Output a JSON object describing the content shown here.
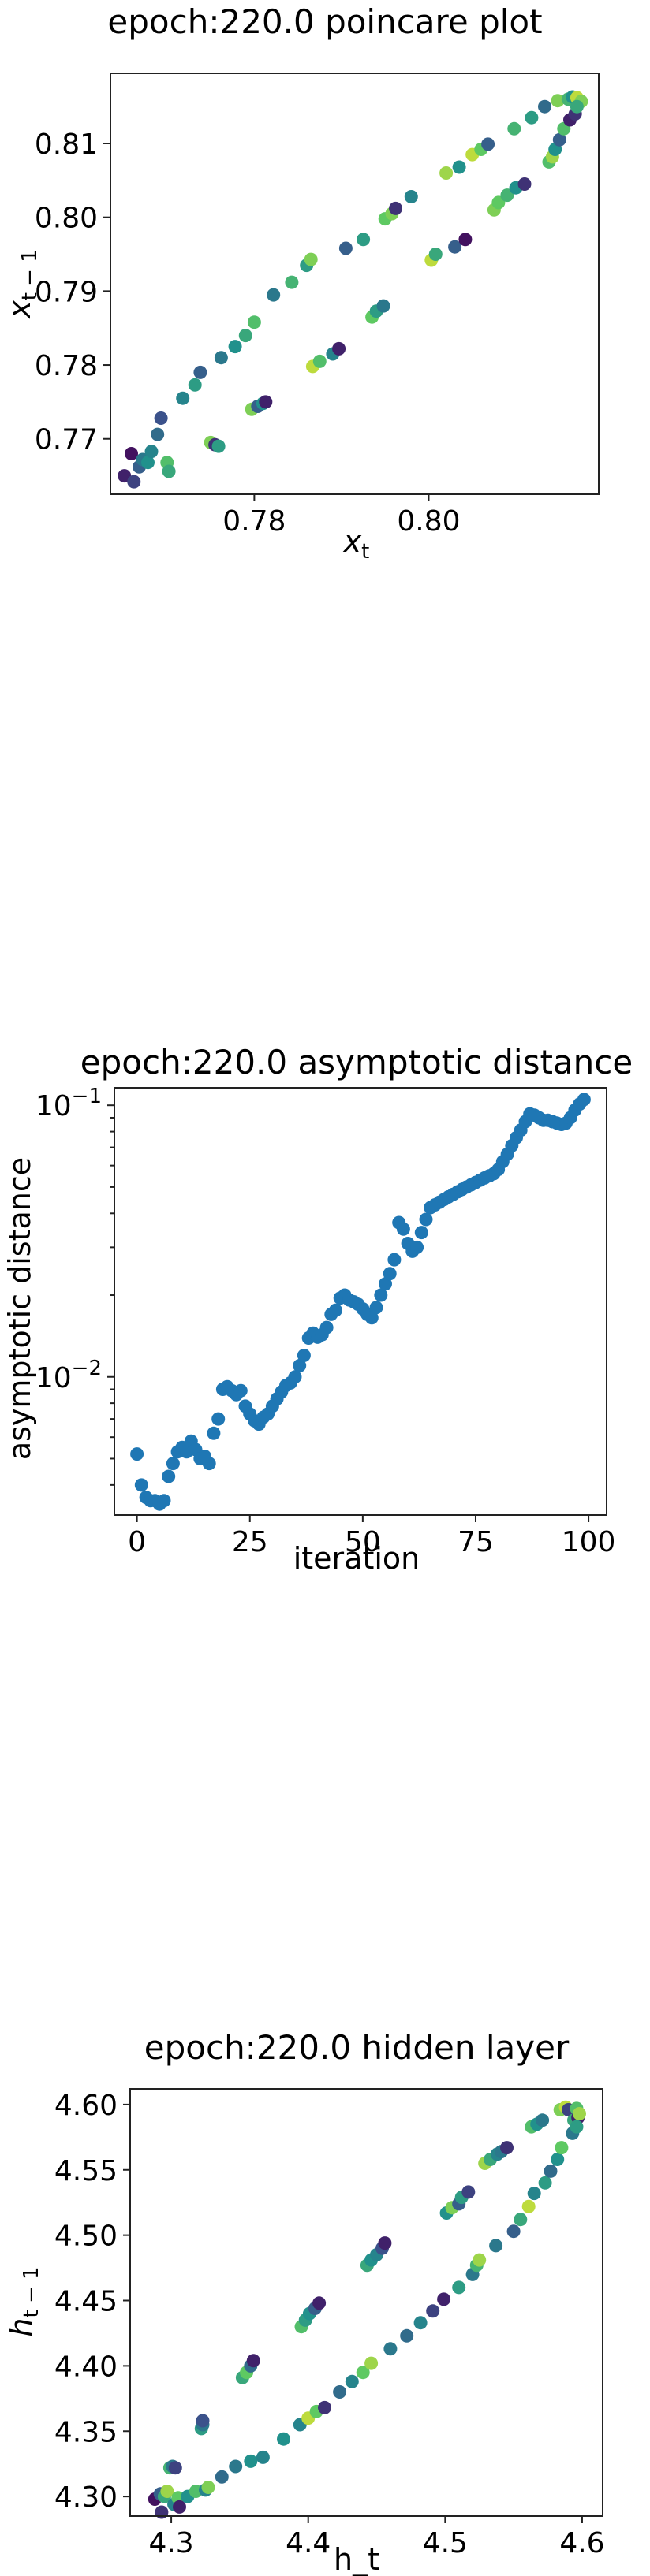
{
  "chart_data": [
    {
      "type": "scatter",
      "title": "epoch:220.0 poincare plot",
      "xlabel": "x_t",
      "ylabel": "x_{t-1}",
      "xlim": [
        0.7635,
        0.8195
      ],
      "ylim": [
        0.7625,
        0.8195
      ],
      "xticks": [
        0.78,
        0.8
      ],
      "xtick_labels": [
        "0.78",
        "0.80"
      ],
      "yticks": [
        0.77,
        0.78,
        0.79,
        0.8,
        0.81
      ],
      "ytick_labels": [
        "0.77",
        "0.78",
        "0.79",
        "0.80",
        "0.81"
      ],
      "colormap": [
        "#440154",
        "#3b528b",
        "#21918c",
        "#5ec962",
        "#fde725"
      ],
      "grid": false,
      "points": [
        [
          0.7651,
          0.765,
          0.1
        ],
        [
          0.7659,
          0.768,
          0.05
        ],
        [
          0.7662,
          0.7642,
          0.2
        ],
        [
          0.7668,
          0.7662,
          0.3
        ],
        [
          0.7672,
          0.7672,
          0.4
        ],
        [
          0.7678,
          0.7668,
          0.5
        ],
        [
          0.7682,
          0.7683,
          0.45
        ],
        [
          0.7689,
          0.7706,
          0.35
        ],
        [
          0.7693,
          0.7728,
          0.25
        ],
        [
          0.77,
          0.7668,
          0.7
        ],
        [
          0.7702,
          0.7656,
          0.6
        ],
        [
          0.7718,
          0.7755,
          0.45
        ],
        [
          0.7732,
          0.7773,
          0.55
        ],
        [
          0.7738,
          0.779,
          0.3
        ],
        [
          0.775,
          0.7695,
          0.8
        ],
        [
          0.7755,
          0.7692,
          0.15
        ],
        [
          0.7759,
          0.769,
          0.55
        ],
        [
          0.7762,
          0.781,
          0.4
        ],
        [
          0.7778,
          0.7825,
          0.5
        ],
        [
          0.779,
          0.784,
          0.6
        ],
        [
          0.7797,
          0.774,
          0.8
        ],
        [
          0.78,
          0.7858,
          0.7
        ],
        [
          0.7804,
          0.7744,
          0.3
        ],
        [
          0.781,
          0.7748,
          0.5
        ],
        [
          0.7813,
          0.775,
          0.1
        ],
        [
          0.7822,
          0.7895,
          0.4
        ],
        [
          0.7843,
          0.7912,
          0.65
        ],
        [
          0.786,
          0.7935,
          0.55
        ],
        [
          0.7865,
          0.7943,
          0.8
        ],
        [
          0.7867,
          0.7798,
          0.9
        ],
        [
          0.7875,
          0.7805,
          0.7
        ],
        [
          0.789,
          0.7815,
          0.45
        ],
        [
          0.7897,
          0.7822,
          0.1
        ],
        [
          0.7905,
          0.7958,
          0.3
        ],
        [
          0.7925,
          0.797,
          0.55
        ],
        [
          0.7935,
          0.7865,
          0.75
        ],
        [
          0.794,
          0.7873,
          0.55
        ],
        [
          0.7948,
          0.788,
          0.4
        ],
        [
          0.795,
          0.7998,
          0.75
        ],
        [
          0.7958,
          0.8005,
          0.8
        ],
        [
          0.7962,
          0.8012,
          0.15
        ],
        [
          0.798,
          0.8028,
          0.45
        ],
        [
          0.8003,
          0.7942,
          0.9
        ],
        [
          0.8008,
          0.795,
          0.6
        ],
        [
          0.802,
          0.806,
          0.85
        ],
        [
          0.803,
          0.796,
          0.3
        ],
        [
          0.8035,
          0.8068,
          0.5
        ],
        [
          0.8042,
          0.797,
          0.05
        ],
        [
          0.805,
          0.8085,
          0.9
        ],
        [
          0.806,
          0.8092,
          0.75
        ],
        [
          0.8068,
          0.8099,
          0.3
        ],
        [
          0.8075,
          0.801,
          0.8
        ],
        [
          0.808,
          0.802,
          0.75
        ],
        [
          0.809,
          0.803,
          0.65
        ],
        [
          0.8098,
          0.812,
          0.65
        ],
        [
          0.81,
          0.804,
          0.5
        ],
        [
          0.811,
          0.8045,
          0.15
        ],
        [
          0.8118,
          0.8135,
          0.55
        ],
        [
          0.8133,
          0.815,
          0.35
        ],
        [
          0.8138,
          0.8075,
          0.7
        ],
        [
          0.8142,
          0.8082,
          0.85
        ],
        [
          0.8145,
          0.8092,
          0.5
        ],
        [
          0.8148,
          0.8158,
          0.8
        ],
        [
          0.815,
          0.8105,
          0.3
        ],
        [
          0.8155,
          0.812,
          0.7
        ],
        [
          0.816,
          0.816,
          0.65
        ],
        [
          0.8162,
          0.8132,
          0.1
        ],
        [
          0.8165,
          0.8163,
          0.5
        ],
        [
          0.8168,
          0.814,
          0.15
        ],
        [
          0.817,
          0.8162,
          0.9
        ],
        [
          0.8175,
          0.8157,
          0.8
        ],
        [
          0.817,
          0.815,
          0.6
        ]
      ]
    },
    {
      "type": "scatter",
      "title": "epoch:220.0 asymptotic distance",
      "xlabel": "iteration",
      "ylabel": "asymptotic distance",
      "yscale": "log",
      "xlim": [
        -5,
        104
      ],
      "ylim": [
        0.0031,
        0.116
      ],
      "xticks": [
        0,
        25,
        50,
        75,
        100
      ],
      "xtick_labels": [
        "0",
        "25",
        "50",
        "75",
        "100"
      ],
      "ytick_labels": [
        "10^-2",
        "10^-1"
      ],
      "color": "#1f77b4",
      "grid": false,
      "x": [
        0,
        1,
        2,
        3,
        4,
        5,
        6,
        7,
        8,
        9,
        10,
        11,
        12,
        13,
        14,
        15,
        16,
        17,
        18,
        19,
        20,
        21,
        22,
        23,
        24,
        25,
        26,
        27,
        28,
        29,
        30,
        31,
        32,
        33,
        34,
        35,
        36,
        37,
        38,
        39,
        40,
        41,
        42,
        43,
        44,
        45,
        46,
        47,
        48,
        49,
        50,
        51,
        52,
        53,
        54,
        55,
        56,
        57,
        58,
        59,
        60,
        61,
        62,
        63,
        64,
        65,
        66,
        67,
        68,
        69,
        70,
        71,
        72,
        73,
        74,
        75,
        76,
        77,
        78,
        79,
        80,
        81,
        82,
        83,
        84,
        85,
        86,
        87,
        88,
        89,
        90,
        91,
        92,
        93,
        94,
        95,
        96,
        97,
        98,
        99
      ],
      "y": [
        0.0052,
        0.004,
        0.0036,
        0.0035,
        0.0035,
        0.0034,
        0.0035,
        0.0043,
        0.0048,
        0.0053,
        0.0055,
        0.0053,
        0.0058,
        0.0054,
        0.005,
        0.0051,
        0.0048,
        0.0062,
        0.007,
        0.009,
        0.0092,
        0.0089,
        0.0086,
        0.0089,
        0.0078,
        0.0073,
        0.0069,
        0.0067,
        0.0071,
        0.0073,
        0.0078,
        0.0083,
        0.0088,
        0.0093,
        0.0095,
        0.01,
        0.011,
        0.012,
        0.0139,
        0.0145,
        0.014,
        0.0143,
        0.0152,
        0.017,
        0.0176,
        0.0195,
        0.02,
        0.0192,
        0.0189,
        0.0185,
        0.0178,
        0.017,
        0.0165,
        0.018,
        0.02,
        0.022,
        0.024,
        0.027,
        0.037,
        0.035,
        0.031,
        0.029,
        0.03,
        0.034,
        0.038,
        0.042,
        0.043,
        0.044,
        0.045,
        0.046,
        0.047,
        0.048,
        0.049,
        0.05,
        0.051,
        0.052,
        0.053,
        0.054,
        0.055,
        0.056,
        0.058,
        0.062,
        0.066,
        0.071,
        0.076,
        0.081,
        0.087,
        0.093,
        0.092,
        0.09,
        0.088,
        0.088,
        0.087,
        0.086,
        0.085,
        0.086,
        0.09,
        0.096,
        0.101,
        0.105
      ]
    },
    {
      "type": "scatter",
      "title": "epoch:220.0 hidden layer",
      "xlabel": "h_t",
      "ylabel": "h_{t-1}",
      "xlim": [
        4.27,
        4.615
      ],
      "ylim": [
        4.285,
        4.612
      ],
      "xticks": [
        4.3,
        4.4,
        4.5,
        4.6
      ],
      "xtick_labels": [
        "4.3",
        "4.4",
        "4.5",
        "4.6"
      ],
      "yticks": [
        4.3,
        4.35,
        4.4,
        4.45,
        4.5,
        4.55,
        4.6
      ],
      "ytick_labels": [
        "4.30",
        "4.35",
        "4.40",
        "4.45",
        "4.50",
        "4.55",
        "4.60"
      ],
      "colormap": [
        "#440154",
        "#3b528b",
        "#21918c",
        "#5ec962",
        "#fde725"
      ],
      "grid": false,
      "points": [
        [
          4.288,
          4.298,
          0.05
        ],
        [
          4.292,
          4.302,
          0.3
        ],
        [
          4.293,
          4.288,
          0.15
        ],
        [
          4.295,
          4.3,
          0.6
        ],
        [
          4.297,
          4.304,
          0.85
        ],
        [
          4.299,
          4.322,
          0.65
        ],
        [
          4.301,
          4.323,
          0.4
        ],
        [
          4.303,
          4.322,
          0.2
        ],
        [
          4.302,
          4.294,
          0.45
        ],
        [
          4.305,
          4.299,
          0.75
        ],
        [
          4.306,
          4.292,
          0.1
        ],
        [
          4.312,
          4.3,
          0.5
        ],
        [
          4.318,
          4.304,
          0.7
        ],
        [
          4.322,
          4.352,
          0.55
        ],
        [
          4.323,
          4.355,
          0.4
        ],
        [
          4.323,
          4.358,
          0.25
        ],
        [
          4.325,
          4.305,
          0.45
        ],
        [
          4.327,
          4.307,
          0.8
        ],
        [
          4.337,
          4.315,
          0.35
        ],
        [
          4.347,
          4.323,
          0.4
        ],
        [
          4.352,
          4.391,
          0.6
        ],
        [
          4.355,
          4.395,
          0.75
        ],
        [
          4.358,
          4.4,
          0.35
        ],
        [
          4.358,
          4.327,
          0.5
        ],
        [
          4.36,
          4.404,
          0.1
        ],
        [
          4.367,
          4.33,
          0.45
        ],
        [
          4.382,
          4.344,
          0.5
        ],
        [
          4.394,
          4.355,
          0.45
        ],
        [
          4.395,
          4.43,
          0.7
        ],
        [
          4.398,
          4.435,
          0.55
        ],
        [
          4.4,
          4.36,
          0.9
        ],
        [
          4.401,
          4.44,
          0.5
        ],
        [
          4.405,
          4.444,
          0.3
        ],
        [
          4.406,
          4.365,
          0.75
        ],
        [
          4.408,
          4.448,
          0.1
        ],
        [
          4.412,
          4.368,
          0.15
        ],
        [
          4.423,
          4.38,
          0.35
        ],
        [
          4.432,
          4.388,
          0.45
        ],
        [
          4.44,
          4.395,
          0.75
        ],
        [
          4.443,
          4.477,
          0.6
        ],
        [
          4.446,
          4.481,
          0.5
        ],
        [
          4.446,
          4.402,
          0.85
        ],
        [
          4.45,
          4.485,
          0.45
        ],
        [
          4.454,
          4.49,
          0.25
        ],
        [
          4.456,
          4.494,
          0.1
        ],
        [
          4.46,
          4.413,
          0.4
        ],
        [
          4.472,
          4.423,
          0.35
        ],
        [
          4.482,
          4.433,
          0.45
        ],
        [
          4.491,
          4.442,
          0.2
        ],
        [
          4.499,
          4.451,
          0.1
        ],
        [
          4.501,
          4.517,
          0.5
        ],
        [
          4.505,
          4.521,
          0.8
        ],
        [
          4.51,
          4.524,
          0.3
        ],
        [
          4.512,
          4.529,
          0.55
        ],
        [
          4.517,
          4.533,
          0.2
        ],
        [
          4.51,
          4.46,
          0.55
        ],
        [
          4.52,
          4.47,
          0.4
        ],
        [
          4.523,
          4.477,
          0.65
        ],
        [
          4.525,
          4.481,
          0.85
        ],
        [
          4.529,
          4.555,
          0.85
        ],
        [
          4.533,
          4.558,
          0.6
        ],
        [
          4.537,
          4.492,
          0.4
        ],
        [
          4.538,
          4.562,
          0.45
        ],
        [
          4.541,
          4.564,
          0.4
        ],
        [
          4.545,
          4.567,
          0.15
        ],
        [
          4.55,
          4.503,
          0.3
        ],
        [
          4.555,
          4.512,
          0.6
        ],
        [
          4.561,
          4.522,
          0.9
        ],
        [
          4.563,
          4.583,
          0.7
        ],
        [
          4.565,
          4.532,
          0.45
        ],
        [
          4.567,
          4.585,
          0.5
        ],
        [
          4.571,
          4.588,
          0.4
        ],
        [
          4.573,
          4.54,
          0.55
        ],
        [
          4.577,
          4.549,
          0.35
        ],
        [
          4.582,
          4.558,
          0.5
        ],
        [
          4.585,
          4.567,
          0.75
        ],
        [
          4.584,
          4.596,
          0.8
        ],
        [
          4.588,
          4.598,
          0.9
        ],
        [
          4.59,
          4.596,
          0.2
        ],
        [
          4.593,
          4.578,
          0.4
        ],
        [
          4.594,
          4.588,
          0.6
        ],
        [
          4.596,
          4.597,
          0.7
        ],
        [
          4.597,
          4.59,
          0.1
        ],
        [
          4.598,
          4.593,
          0.85
        ],
        [
          4.596,
          4.583,
          0.55
        ]
      ]
    }
  ]
}
